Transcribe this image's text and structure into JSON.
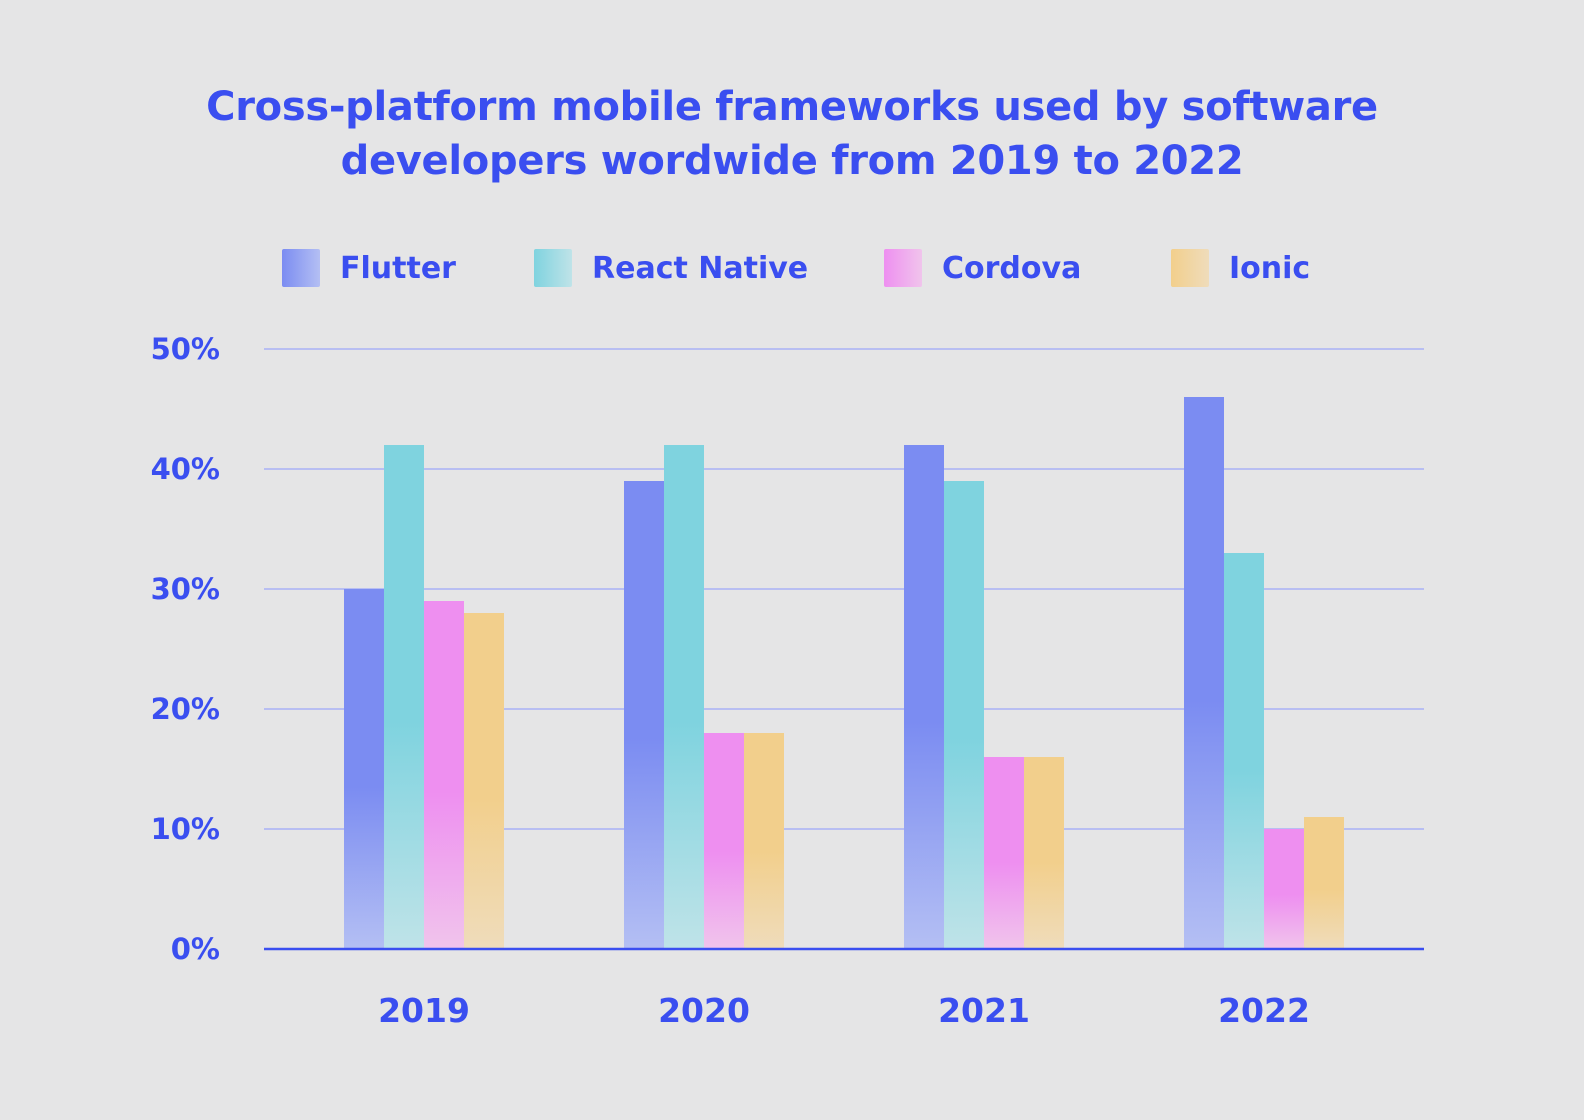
{
  "chart_data": {
    "type": "bar",
    "title": "Cross-platform mobile frameworks used by software developers wordwide from 2019 to 2022",
    "title_lines": [
      "Cross-platform mobile frameworks used by software",
      "developers wordwide from 2019 to 2022"
    ],
    "categories": [
      "2019",
      "2020",
      "2021",
      "2022"
    ],
    "series": [
      {
        "name": "Flutter",
        "values": [
          30,
          39,
          42,
          46
        ],
        "color": "#7b8cf2",
        "color_light": "#b4bff3"
      },
      {
        "name": "React Native",
        "values": [
          42,
          42,
          39,
          33
        ],
        "color": "#7fd3df",
        "color_light": "#bfe3e8"
      },
      {
        "name": "Cordova",
        "values": [
          29,
          18,
          16,
          10
        ],
        "color": "#ee8ff0",
        "color_light": "#f0c4ec"
      },
      {
        "name": "Ionic",
        "values": [
          28,
          18,
          16,
          11
        ],
        "color": "#f2cf8c",
        "color_light": "#efdcbb"
      }
    ],
    "y_ticks": [
      "0%",
      "10%",
      "20%",
      "30%",
      "40%",
      "50%"
    ],
    "ylim": [
      0,
      50
    ],
    "xlabel": "",
    "ylabel": "",
    "grid": true,
    "legend_position": "top",
    "text_color": "#3a4ef0",
    "gridline_color": "#a9b2f5",
    "axis_color": "#3a4ef0",
    "background": "#e5e5e6"
  }
}
